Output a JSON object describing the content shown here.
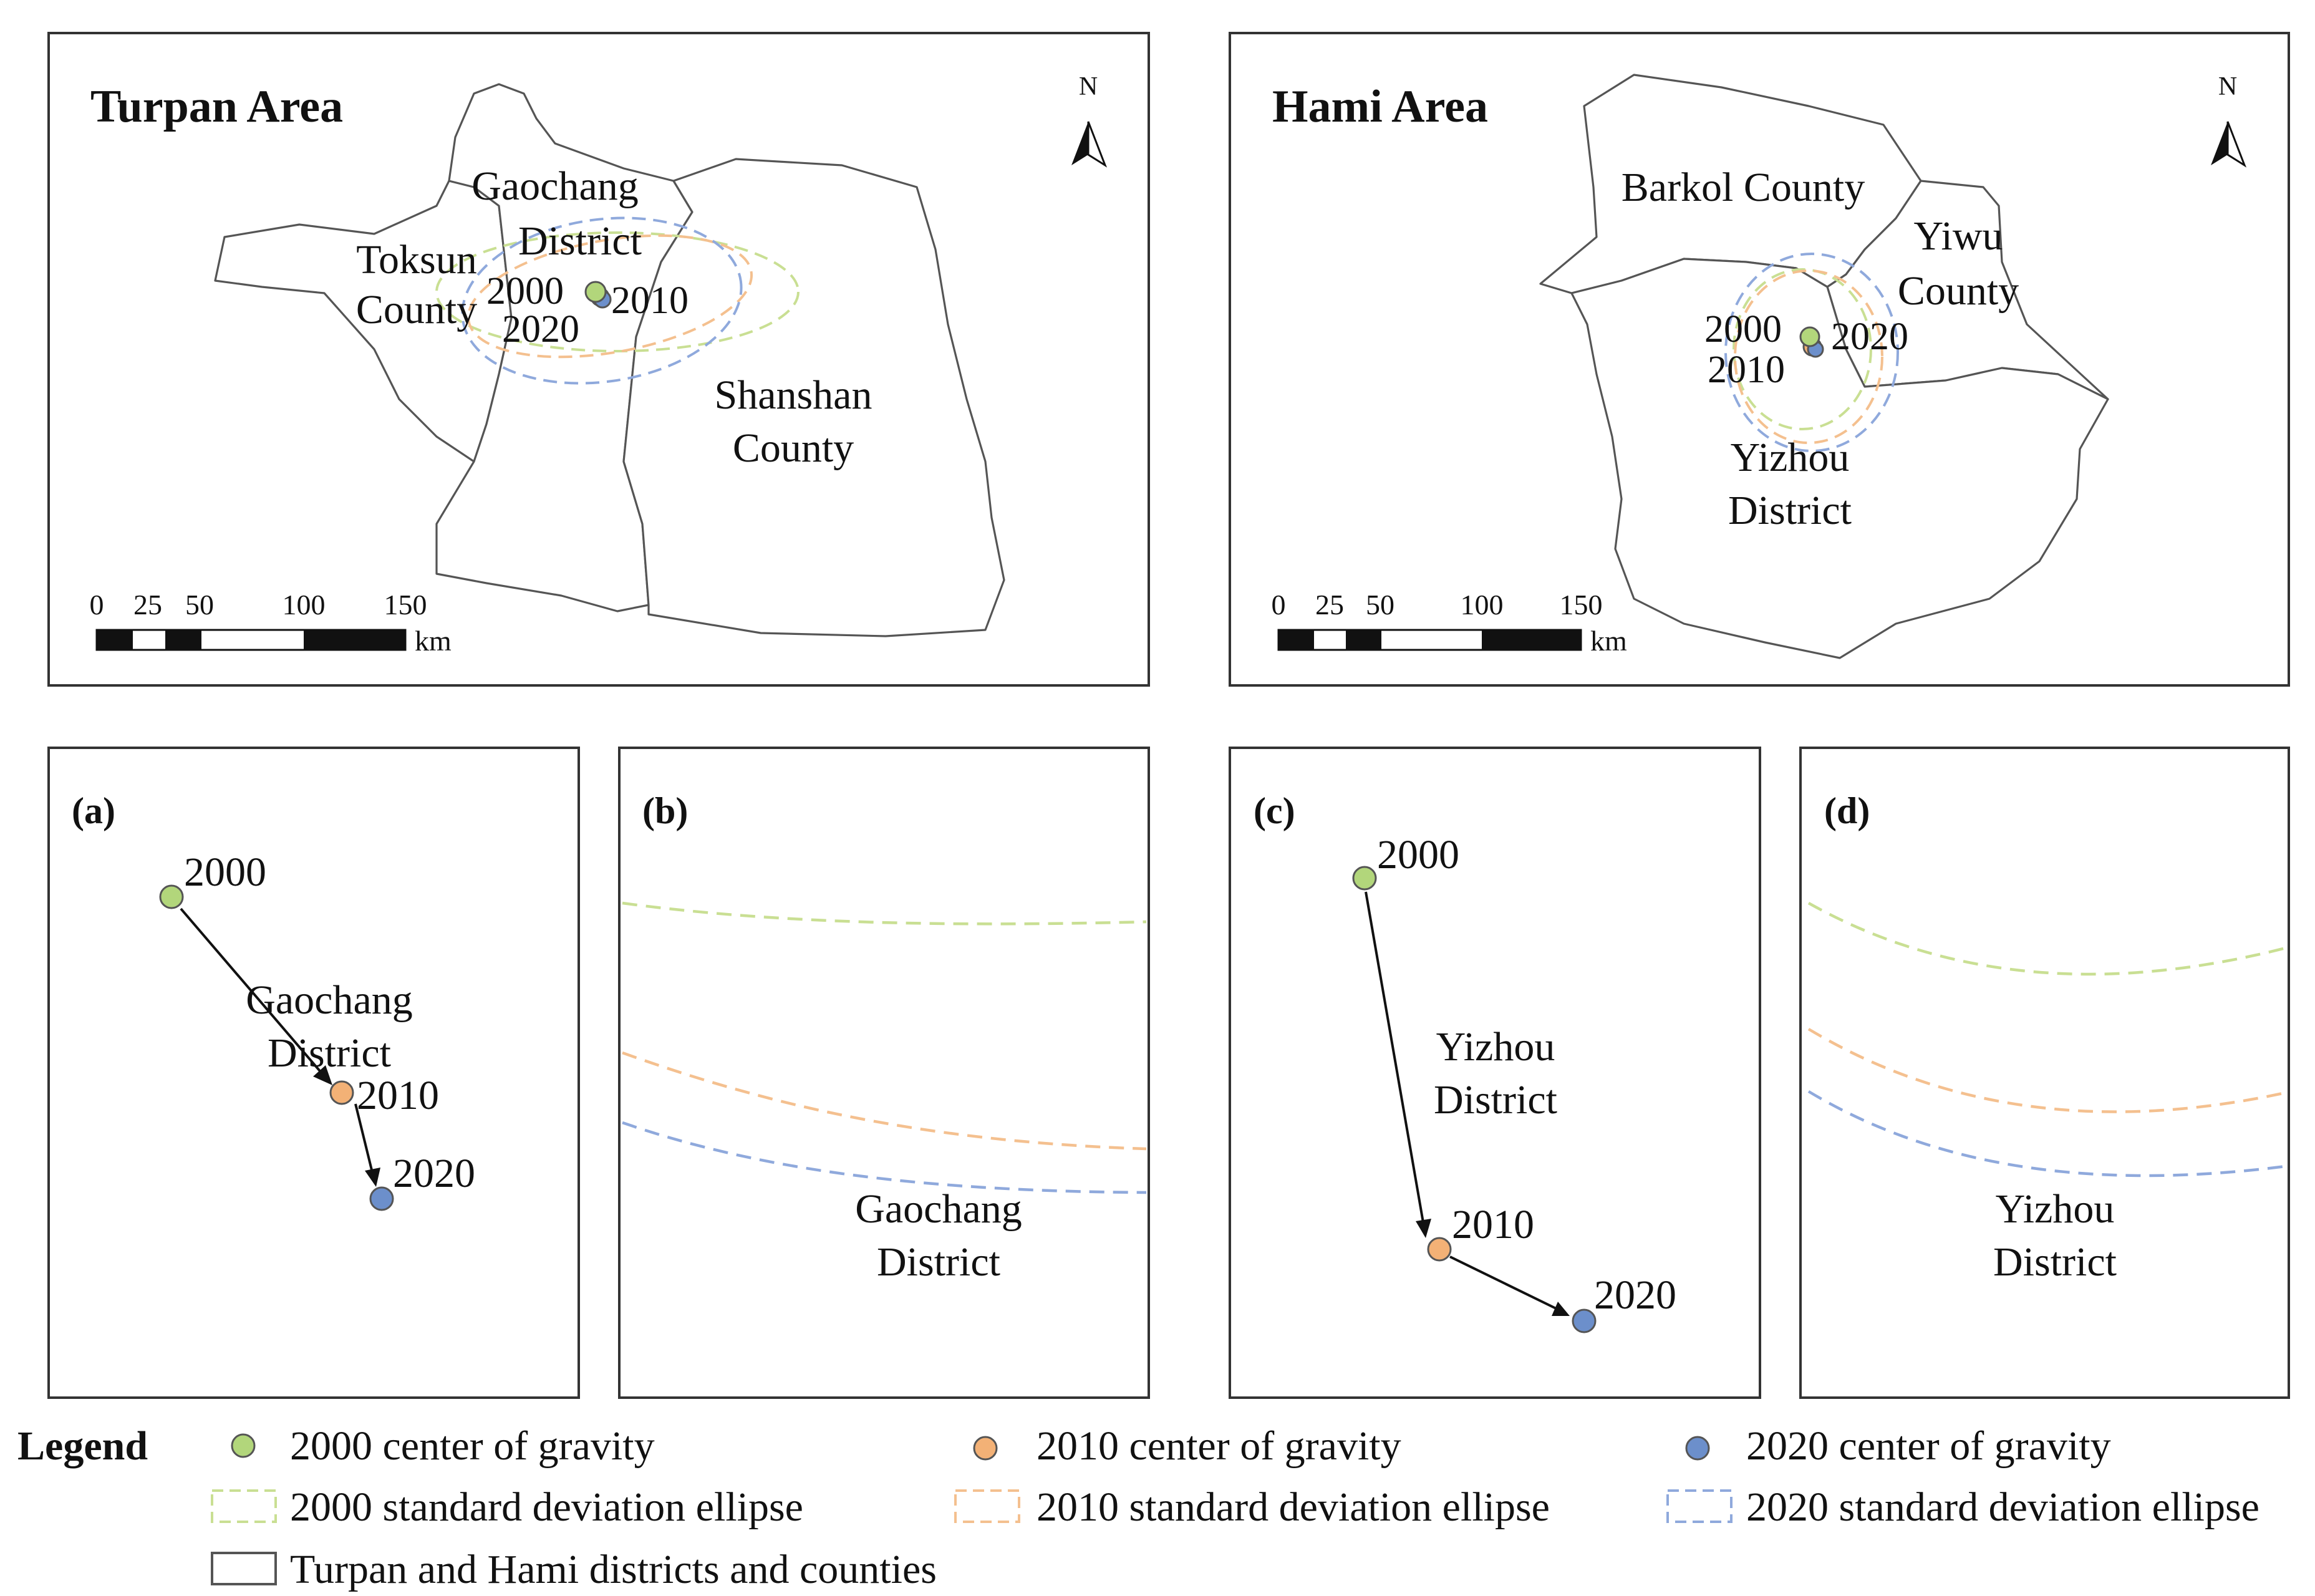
{
  "colors": {
    "c2000": "#b2d67b",
    "c2010": "#f3b176",
    "c2020": "#6c8fcb",
    "ell2000": "#c9df93",
    "ell2010": "#f4c08f",
    "ell2020": "#8fa9dc",
    "boundary": "#555555",
    "arrow": "#111111"
  },
  "turpan": {
    "title": "Turpan Area",
    "north": "N",
    "gaochang_1": "Gaochang",
    "gaochang_2": "District",
    "toksun_1": "Toksun",
    "toksun_2": "County",
    "shanshan_1": "Shanshan",
    "shanshan_2": "County",
    "y2000": "2000",
    "y2010": "2010",
    "y2020": "2020",
    "scale": [
      "0",
      "25",
      "50",
      "100",
      "150"
    ],
    "scale_unit": "km"
  },
  "hami": {
    "title": "Hami Area",
    "north": "N",
    "barkol": "Barkol County",
    "yiwu_1": "Yiwu",
    "yiwu_2": "County",
    "yizhou_1": "Yizhou",
    "yizhou_2": "District",
    "y2000": "2000",
    "y2010": "2010",
    "y2020": "2020",
    "scale": [
      "0",
      "25",
      "50",
      "100",
      "150"
    ],
    "scale_unit": "km"
  },
  "panel_a": {
    "tag": "(a)",
    "district_1": "Gaochang",
    "district_2": "District",
    "y2000": "2000",
    "y2010": "2010",
    "y2020": "2020"
  },
  "panel_b": {
    "tag": "(b)",
    "district_1": "Gaochang",
    "district_2": "District"
  },
  "panel_c": {
    "tag": "(c)",
    "district_1": "Yizhou",
    "district_2": "District",
    "y2000": "2000",
    "y2010": "2010",
    "y2020": "2020"
  },
  "panel_d": {
    "tag": "(d)",
    "district_1": "Yizhou",
    "district_2": "District"
  },
  "legend": {
    "heading": "Legend",
    "cog2000": "2000 center of gravity",
    "cog2010": "2010 center of gravity",
    "cog2020": "2020 center of gravity",
    "sde2000": "2000 standard deviation ellipse",
    "sde2010": "2010 standard deviation ellipse",
    "sde2020": "2020 standard deviation ellipse",
    "boundaries": "Turpan and Hami districts and counties"
  }
}
